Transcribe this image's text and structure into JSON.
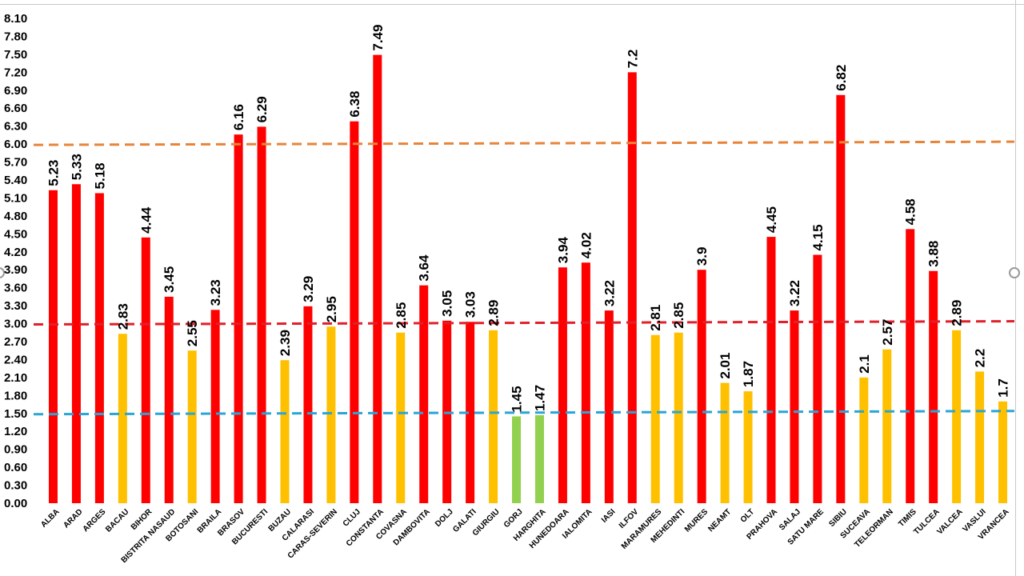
{
  "chart_data": {
    "type": "bar",
    "title": "",
    "xlabel": "",
    "ylabel": "",
    "ylim": [
      0,
      8.1
    ],
    "yticks": [
      "0.00",
      "0.30",
      "0.60",
      "0.90",
      "1.20",
      "1.50",
      "1.80",
      "2.10",
      "2.40",
      "2.70",
      "3.00",
      "3.30",
      "3.60",
      "3.90",
      "4.20",
      "4.50",
      "4.80",
      "5.10",
      "5.40",
      "5.70",
      "6.00",
      "6.30",
      "6.60",
      "6.90",
      "7.20",
      "7.50",
      "7.80",
      "8.10"
    ],
    "grid": false,
    "categories": [
      "ALBA",
      "ARAD",
      "ARGES",
      "BACAU",
      "BIHOR",
      "BISTRITA NASAUD",
      "BOTOSANI",
      "BRAILA",
      "BRASOV",
      "BUCURESTI",
      "BUZAU",
      "CALARASI",
      "CARAS-SEVERIN",
      "CLUJ",
      "CONSTANTA",
      "COVASNA",
      "DAMBOVITA",
      "DOLJ",
      "GALATI",
      "GIURGIU",
      "GORJ",
      "HARGHITA",
      "HUNEDOARA",
      "IALOMITA",
      "IASI",
      "ILFOV",
      "MARAMURES",
      "MEHEDINTI",
      "MURES",
      "NEAMT",
      "OLT",
      "PRAHOVA",
      "SALAJ",
      "SATU MARE",
      "SIBIU",
      "SUCEAVA",
      "TELEORMAN",
      "TIMIS",
      "TULCEA",
      "VALCEA",
      "VASLUI",
      "VRANCEA"
    ],
    "values": [
      5.23,
      5.33,
      5.18,
      2.83,
      4.44,
      3.45,
      2.55,
      3.23,
      6.16,
      6.29,
      2.39,
      3.29,
      2.95,
      6.38,
      7.49,
      2.85,
      3.64,
      3.05,
      3.03,
      2.89,
      1.45,
      1.47,
      3.94,
      4.02,
      3.22,
      7.2,
      2.81,
      2.85,
      3.9,
      2.01,
      1.87,
      4.45,
      3.22,
      4.15,
      6.82,
      2.1,
      2.57,
      4.58,
      3.88,
      2.89,
      2.2,
      1.7
    ],
    "value_labels": [
      "5.23",
      "5.33",
      "5.18",
      "2.83",
      "4.44",
      "3.45",
      "2.55",
      "3.23",
      "6.16",
      "6.29",
      "2.39",
      "3.29",
      "2.95",
      "6.38",
      "7.49",
      "2.85",
      "3.64",
      "3.05",
      "3.03",
      "2.89",
      "1.45",
      "1.47",
      "3.94",
      "4.02",
      "3.22",
      "7.2",
      "2.81",
      "2.85",
      "3.9",
      "2.01",
      "1.87",
      "4.45",
      "3.22",
      "4.15",
      "6.82",
      "2.1",
      "2.57",
      "4.58",
      "3.88",
      "2.89",
      "2.2",
      "1.7"
    ],
    "thresholds": [
      {
        "value": 1.5,
        "color": "#2aa5d6"
      },
      {
        "value": 3.0,
        "color": "#e0202a"
      },
      {
        "value": 6.0,
        "color": "#e8843a"
      }
    ],
    "colors": {
      "green": "#92d050",
      "yellow": "#ffc000",
      "red": "#ff0000"
    }
  }
}
